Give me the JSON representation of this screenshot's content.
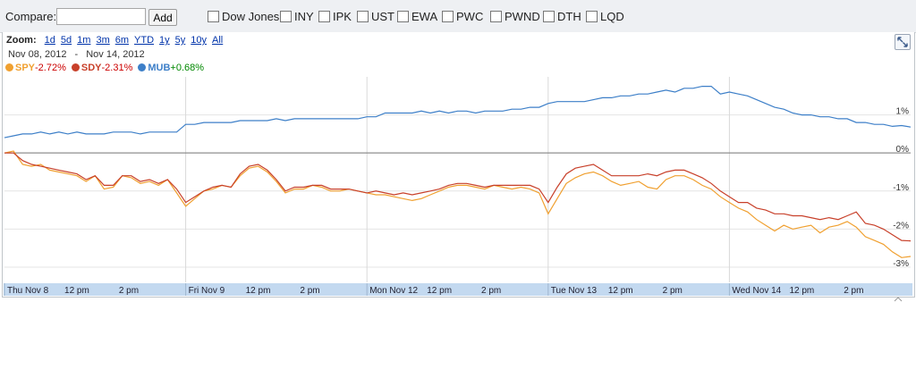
{
  "compare": {
    "label": "Compare:",
    "input_value": "",
    "add_label": "Add",
    "checkboxes": [
      "Dow Jones",
      "INY",
      "IPK",
      "UST",
      "EWA",
      "PWC",
      "PWND",
      "DTH",
      "LQD"
    ]
  },
  "zoom": {
    "label": "Zoom:",
    "options": [
      "1d",
      "5d",
      "1m",
      "3m",
      "6m",
      "YTD",
      "1y",
      "5y",
      "10y",
      "All"
    ]
  },
  "date_range": {
    "from": "Nov 08, 2012",
    "sep": "-",
    "to": "Nov 14, 2012"
  },
  "legend": [
    {
      "name": "SPY",
      "change": "-2.72%",
      "color": "#f0a030",
      "change_color": "#cc0000"
    },
    {
      "name": "SDY",
      "change": "-2.31%",
      "color": "#c8402a",
      "change_color": "#cc0000"
    },
    {
      "name": "MUB",
      "change": "+0.68%",
      "color": "#3d7fc8",
      "change_color": "#008800"
    }
  ],
  "chart_data": {
    "type": "line",
    "y_ticks": [
      "1%",
      "0%",
      "-1%",
      "-2%",
      "-3%"
    ],
    "y_tick_values": [
      1,
      0,
      -1,
      -2,
      -3
    ],
    "ylim": [
      -3.4,
      2.0
    ],
    "x_days": [
      "Thu Nov 8",
      "Fri Nov 9",
      "Mon Nov 12",
      "Tue Nov 13",
      "Wed Nov 14"
    ],
    "x_intraday_labels": [
      "12 pm",
      "2 pm"
    ],
    "x_tick_labels": [
      "Thu Nov 8",
      "12 pm",
      "2 pm",
      "Fri Nov 9",
      "12 pm",
      "2 pm",
      "Mon Nov 12",
      "12 pm",
      "2 pm",
      "Tue Nov 13",
      "12 pm",
      "2 pm",
      "Wed Nov 14",
      "12 pm",
      "2 pm"
    ],
    "x_unit": "trading day (0 = Thu Nov 8 open)",
    "x": [
      0,
      0.05,
      0.1,
      0.15,
      0.2,
      0.25,
      0.3,
      0.35,
      0.4,
      0.45,
      0.5,
      0.55,
      0.6,
      0.65,
      0.7,
      0.75,
      0.8,
      0.85,
      0.9,
      0.95,
      1.0,
      1.05,
      1.1,
      1.15,
      1.2,
      1.25,
      1.3,
      1.35,
      1.4,
      1.45,
      1.5,
      1.55,
      1.6,
      1.65,
      1.7,
      1.75,
      1.8,
      1.85,
      1.9,
      1.95,
      2.0,
      2.05,
      2.1,
      2.15,
      2.2,
      2.25,
      2.3,
      2.35,
      2.4,
      2.45,
      2.5,
      2.55,
      2.6,
      2.65,
      2.7,
      2.75,
      2.8,
      2.85,
      2.9,
      2.95,
      3.0,
      3.05,
      3.1,
      3.15,
      3.2,
      3.25,
      3.3,
      3.35,
      3.4,
      3.45,
      3.5,
      3.55,
      3.6,
      3.65,
      3.7,
      3.75,
      3.8,
      3.85,
      3.9,
      3.95,
      4.0,
      4.05,
      4.1,
      4.15,
      4.2,
      4.25,
      4.3,
      4.35,
      4.4,
      4.45,
      4.5,
      4.55,
      4.6,
      4.65,
      4.7,
      4.75,
      4.8,
      4.85,
      4.9,
      4.95,
      5.0
    ],
    "series": [
      {
        "name": "SPY",
        "color": "#f0a030",
        "values": [
          0.0,
          0.05,
          -0.3,
          -0.35,
          -0.3,
          -0.45,
          -0.5,
          -0.55,
          -0.6,
          -0.75,
          -0.6,
          -0.95,
          -0.9,
          -0.6,
          -0.65,
          -0.8,
          -0.75,
          -0.85,
          -0.7,
          -1.05,
          -1.4,
          -1.2,
          -1.0,
          -0.95,
          -0.85,
          -0.9,
          -0.6,
          -0.4,
          -0.35,
          -0.5,
          -0.75,
          -1.05,
          -0.95,
          -0.95,
          -0.85,
          -0.9,
          -1.0,
          -1.0,
          -0.95,
          -1.0,
          -1.05,
          -1.1,
          -1.1,
          -1.15,
          -1.2,
          -1.25,
          -1.2,
          -1.1,
          -1.0,
          -0.9,
          -0.85,
          -0.85,
          -0.9,
          -0.95,
          -0.85,
          -0.9,
          -0.95,
          -0.9,
          -0.95,
          -1.05,
          -1.6,
          -1.2,
          -0.8,
          -0.65,
          -0.55,
          -0.5,
          -0.6,
          -0.75,
          -0.85,
          -0.8,
          -0.75,
          -0.9,
          -0.95,
          -0.7,
          -0.6,
          -0.6,
          -0.7,
          -0.85,
          -0.95,
          -1.15,
          -1.3,
          -1.45,
          -1.55,
          -1.75,
          -1.9,
          -2.05,
          -1.9,
          -2.0,
          -1.95,
          -1.9,
          -2.1,
          -1.95,
          -1.9,
          -1.8,
          -1.95,
          -2.2,
          -2.3,
          -2.4,
          -2.6,
          -2.75,
          -2.72
        ]
      },
      {
        "name": "SDY",
        "color": "#c8402a",
        "values": [
          0.0,
          0.0,
          -0.2,
          -0.3,
          -0.35,
          -0.4,
          -0.45,
          -0.5,
          -0.55,
          -0.7,
          -0.6,
          -0.85,
          -0.85,
          -0.6,
          -0.6,
          -0.75,
          -0.7,
          -0.8,
          -0.7,
          -0.95,
          -1.3,
          -1.15,
          -1.0,
          -0.9,
          -0.85,
          -0.9,
          -0.55,
          -0.35,
          -0.3,
          -0.45,
          -0.7,
          -1.0,
          -0.9,
          -0.9,
          -0.85,
          -0.85,
          -0.95,
          -0.95,
          -0.95,
          -1.0,
          -1.05,
          -1.0,
          -1.05,
          -1.1,
          -1.05,
          -1.1,
          -1.05,
          -1.0,
          -0.95,
          -0.85,
          -0.8,
          -0.8,
          -0.85,
          -0.9,
          -0.85,
          -0.85,
          -0.85,
          -0.85,
          -0.85,
          -0.95,
          -1.3,
          -0.9,
          -0.55,
          -0.4,
          -0.35,
          -0.3,
          -0.45,
          -0.6,
          -0.6,
          -0.6,
          -0.6,
          -0.55,
          -0.6,
          -0.5,
          -0.45,
          -0.45,
          -0.55,
          -0.65,
          -0.8,
          -1.0,
          -1.15,
          -1.3,
          -1.3,
          -1.45,
          -1.5,
          -1.6,
          -1.6,
          -1.65,
          -1.65,
          -1.7,
          -1.75,
          -1.7,
          -1.75,
          -1.65,
          -1.55,
          -1.85,
          -1.9,
          -2.0,
          -2.15,
          -2.3,
          -2.31
        ]
      },
      {
        "name": "MUB",
        "color": "#3d7fc8",
        "values": [
          0.4,
          0.45,
          0.5,
          0.5,
          0.55,
          0.5,
          0.55,
          0.5,
          0.55,
          0.5,
          0.5,
          0.5,
          0.55,
          0.55,
          0.55,
          0.5,
          0.55,
          0.55,
          0.55,
          0.55,
          0.75,
          0.75,
          0.8,
          0.8,
          0.8,
          0.8,
          0.85,
          0.85,
          0.85,
          0.85,
          0.9,
          0.85,
          0.9,
          0.9,
          0.9,
          0.9,
          0.9,
          0.9,
          0.9,
          0.9,
          0.95,
          0.95,
          1.05,
          1.05,
          1.05,
          1.05,
          1.1,
          1.05,
          1.1,
          1.05,
          1.1,
          1.1,
          1.05,
          1.1,
          1.1,
          1.1,
          1.15,
          1.15,
          1.2,
          1.2,
          1.3,
          1.35,
          1.35,
          1.35,
          1.35,
          1.4,
          1.45,
          1.45,
          1.5,
          1.5,
          1.55,
          1.55,
          1.6,
          1.65,
          1.6,
          1.7,
          1.7,
          1.75,
          1.75,
          1.55,
          1.6,
          1.55,
          1.5,
          1.4,
          1.3,
          1.2,
          1.15,
          1.05,
          1.0,
          1.0,
          0.95,
          0.95,
          0.9,
          0.9,
          0.8,
          0.8,
          0.75,
          0.75,
          0.7,
          0.72,
          0.68
        ]
      }
    ],
    "grid": true,
    "legend_position": "top-left"
  }
}
